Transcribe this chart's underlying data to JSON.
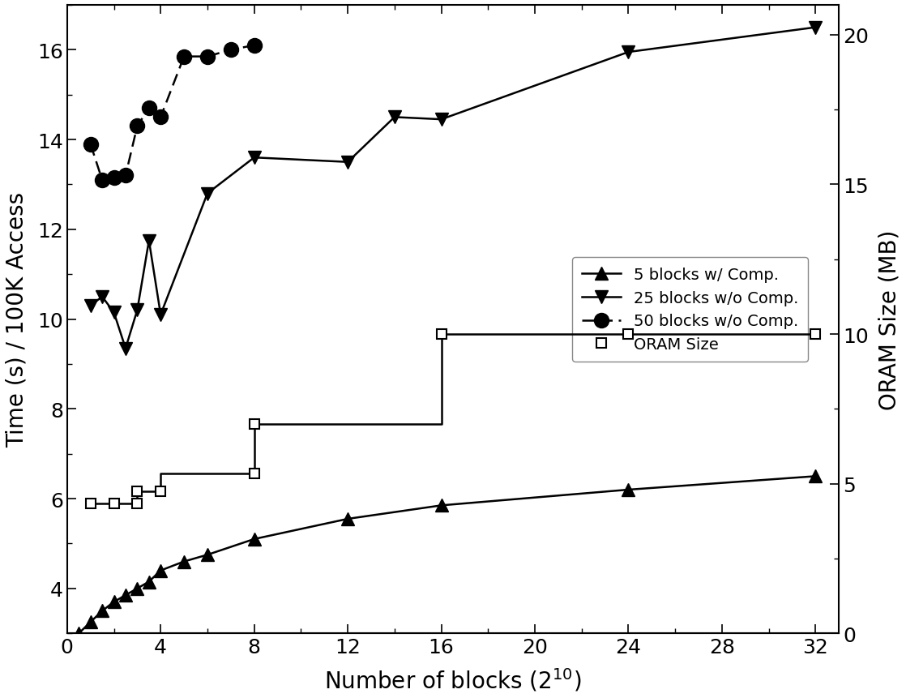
{
  "series_5blocks": {
    "label": "5 blocks w/ Comp.",
    "x": [
      0.5,
      1.0,
      1.5,
      2.0,
      2.5,
      3.0,
      3.5,
      4.0,
      5.0,
      6.0,
      8.0,
      12.0,
      16.0,
      24.0,
      32.0
    ],
    "y": [
      3.0,
      3.25,
      3.5,
      3.7,
      3.85,
      4.0,
      4.15,
      4.4,
      4.6,
      4.75,
      5.1,
      5.55,
      5.85,
      6.2,
      6.5
    ],
    "marker": "^",
    "linestyle": "-",
    "color": "#000000",
    "markersize": 11
  },
  "series_25blocks": {
    "label": "25 blocks w/o Comp.",
    "x": [
      1.0,
      1.5,
      2.0,
      2.5,
      3.0,
      3.5,
      4.0,
      6.0,
      8.0,
      12.0,
      14.0,
      16.0,
      24.0,
      32.0
    ],
    "y": [
      10.3,
      10.5,
      10.15,
      9.35,
      10.2,
      11.75,
      10.1,
      12.8,
      13.6,
      13.5,
      14.5,
      14.45,
      15.95,
      16.5
    ],
    "marker": "v",
    "linestyle": "-",
    "color": "#000000",
    "markersize": 11
  },
  "series_50blocks": {
    "label": "50 blocks w/o Comp.",
    "x": [
      1.0,
      1.5,
      2.0,
      2.5,
      3.0,
      3.5,
      4.0,
      5.0,
      6.0,
      7.0,
      8.0
    ],
    "y": [
      13.9,
      13.1,
      13.15,
      13.2,
      14.3,
      14.7,
      14.5,
      15.85,
      15.85,
      16.0,
      16.1
    ],
    "marker": "o",
    "linestyle": "--",
    "color": "#000000",
    "markersize": 13,
    "dashes": [
      6,
      3
    ]
  },
  "series_oram_line": {
    "x": [
      1.0,
      3.0,
      3.0,
      4.0,
      4.0,
      8.0,
      8.0,
      16.0,
      16.0,
      32.0
    ],
    "y": [
      4.35,
      4.35,
      4.75,
      4.75,
      5.35,
      5.35,
      7.0,
      7.0,
      10.0,
      10.0
    ]
  },
  "series_oram_markers": {
    "label": "ORAM Size",
    "x": [
      1.0,
      2.0,
      3.0,
      3.0,
      4.0,
      8.0,
      8.0,
      16.0,
      24.0,
      32.0
    ],
    "y": [
      4.35,
      4.35,
      4.35,
      4.75,
      4.75,
      5.35,
      7.0,
      10.0,
      10.0,
      10.0
    ],
    "marker": "s",
    "color": "#000000",
    "markersize": 9,
    "markerfacecolor": "white"
  },
  "xlabel": "Number of blocks (2$^{10}$)",
  "ylabel_left": "Time (s) / 100K Access",
  "ylabel_right": "ORAM Size (MB)",
  "xlim": [
    0,
    33
  ],
  "ylim_left": [
    3,
    17
  ],
  "ylim_right": [
    0,
    21
  ],
  "xticks": [
    0,
    4,
    8,
    12,
    16,
    20,
    24,
    28,
    32
  ],
  "yticks_left": [
    4,
    6,
    8,
    10,
    12,
    14,
    16
  ],
  "yticks_right": [
    0,
    5,
    10,
    15,
    20
  ]
}
